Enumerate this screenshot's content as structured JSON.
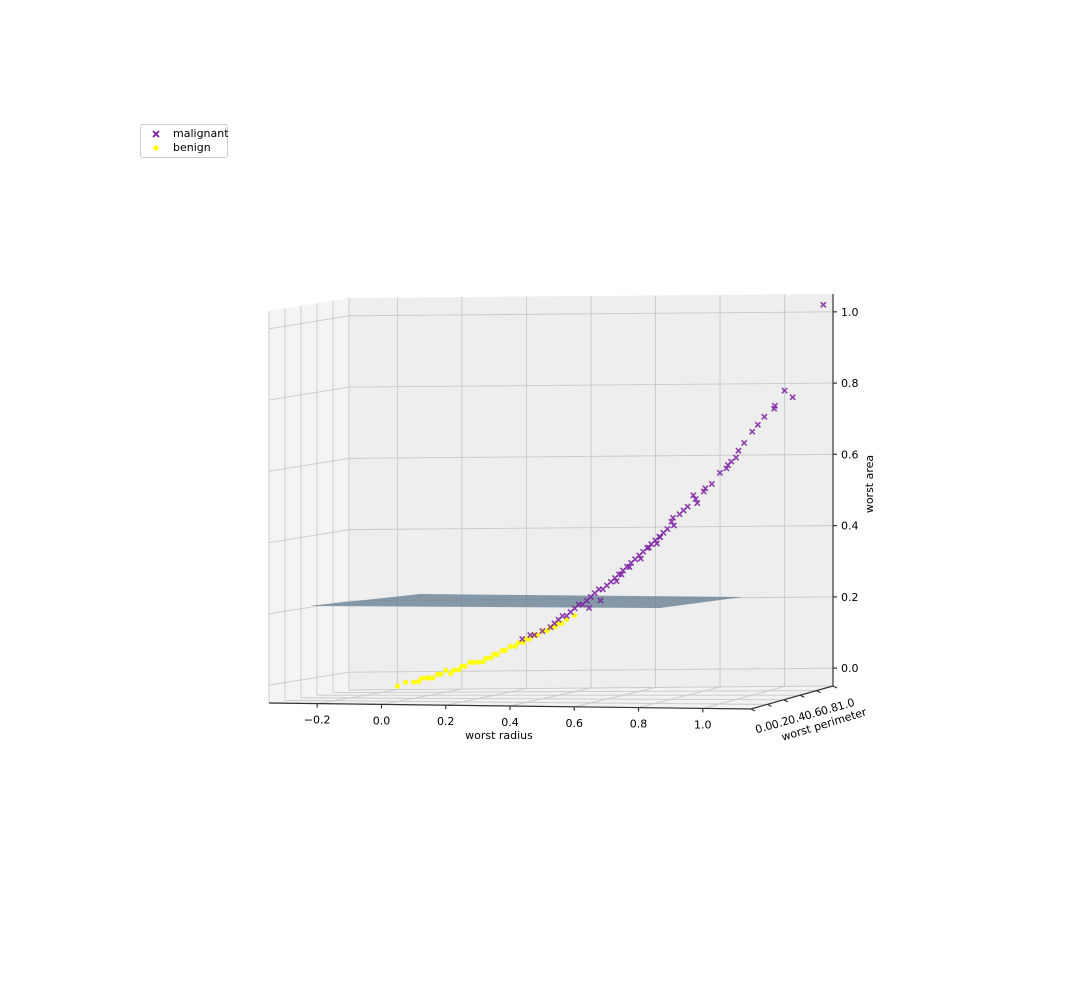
{
  "chart_data": {
    "type": "scatter",
    "projection": "3d",
    "title": "",
    "xlabel": "worst radius",
    "ylabel": "worst perimeter",
    "zlabel": "worst area",
    "xlim": [
      -0.35,
      1.15
    ],
    "ylim": [
      0.0,
      1.0
    ],
    "zlim": [
      -0.05,
      1.05
    ],
    "x_ticks": [
      "−0.2",
      "0.0",
      "0.2",
      "0.4",
      "0.6",
      "0.8",
      "1.0"
    ],
    "y_ticks": [
      "0.0",
      "0.2",
      "0.4",
      "0.6",
      "0.8",
      "1.0"
    ],
    "z_ticks": [
      "0.0",
      "0.2",
      "0.4",
      "0.6",
      "0.8",
      "1.0"
    ],
    "grid": true,
    "legend_position": "upper-left",
    "decision_plane": {
      "type": "surface",
      "z_level": 0.2,
      "color": "#6a8296"
    },
    "series": [
      {
        "name": "malignant",
        "marker": "x",
        "color": "#7b1fa2",
        "points": [
          [
            0.35,
            0.35,
            0.12
          ],
          [
            0.37,
            0.37,
            0.13
          ],
          [
            0.38,
            0.38,
            0.13
          ],
          [
            0.4,
            0.4,
            0.14
          ],
          [
            0.42,
            0.42,
            0.15
          ],
          [
            0.43,
            0.43,
            0.16
          ],
          [
            0.44,
            0.44,
            0.17
          ],
          [
            0.45,
            0.45,
            0.18
          ],
          [
            0.46,
            0.46,
            0.18
          ],
          [
            0.47,
            0.47,
            0.19
          ],
          [
            0.48,
            0.48,
            0.2
          ],
          [
            0.49,
            0.49,
            0.21
          ],
          [
            0.5,
            0.5,
            0.21
          ],
          [
            0.51,
            0.51,
            0.22
          ],
          [
            0.52,
            0.52,
            0.23
          ],
          [
            0.53,
            0.53,
            0.24
          ],
          [
            0.54,
            0.54,
            0.25
          ],
          [
            0.55,
            0.55,
            0.25
          ],
          [
            0.56,
            0.56,
            0.26
          ],
          [
            0.57,
            0.57,
            0.27
          ],
          [
            0.58,
            0.58,
            0.28
          ],
          [
            0.59,
            0.59,
            0.29
          ],
          [
            0.6,
            0.6,
            0.3
          ],
          [
            0.61,
            0.61,
            0.31
          ],
          [
            0.62,
            0.62,
            0.32
          ],
          [
            0.63,
            0.63,
            0.33
          ],
          [
            0.64,
            0.64,
            0.34
          ],
          [
            0.65,
            0.65,
            0.35
          ],
          [
            0.66,
            0.66,
            0.36
          ],
          [
            0.67,
            0.67,
            0.37
          ],
          [
            0.68,
            0.68,
            0.38
          ],
          [
            0.69,
            0.69,
            0.39
          ],
          [
            0.7,
            0.7,
            0.4
          ],
          [
            0.71,
            0.71,
            0.41
          ],
          [
            0.72,
            0.72,
            0.43
          ],
          [
            0.74,
            0.74,
            0.45
          ],
          [
            0.75,
            0.75,
            0.46
          ],
          [
            0.76,
            0.76,
            0.47
          ],
          [
            0.78,
            0.78,
            0.49
          ],
          [
            0.8,
            0.8,
            0.51
          ],
          [
            0.82,
            0.82,
            0.53
          ],
          [
            0.84,
            0.84,
            0.56
          ],
          [
            0.86,
            0.86,
            0.58
          ],
          [
            0.88,
            0.88,
            0.6
          ],
          [
            0.9,
            0.9,
            0.64
          ],
          [
            0.92,
            0.92,
            0.67
          ],
          [
            0.95,
            0.95,
            0.71
          ],
          [
            1.0,
            1.0,
            0.78
          ],
          [
            1.02,
            1.02,
            0.76
          ],
          [
            1.12,
            1.0,
            1.02
          ],
          [
            0.55,
            0.52,
            0.22
          ],
          [
            0.58,
            0.6,
            0.27
          ],
          [
            0.62,
            0.6,
            0.31
          ],
          [
            0.66,
            0.68,
            0.36
          ],
          [
            0.7,
            0.66,
            0.39
          ],
          [
            0.73,
            0.71,
            0.42
          ],
          [
            0.77,
            0.79,
            0.5
          ],
          [
            0.81,
            0.78,
            0.52
          ],
          [
            0.85,
            0.88,
            0.57
          ],
          [
            0.89,
            0.87,
            0.62
          ],
          [
            0.94,
            0.91,
            0.69
          ],
          [
            0.98,
            0.96,
            0.74
          ],
          [
            0.6,
            0.58,
            0.29
          ],
          [
            0.64,
            0.66,
            0.33
          ],
          [
            0.68,
            0.7,
            0.37
          ],
          [
            0.72,
            0.74,
            0.44
          ],
          [
            0.79,
            0.76,
            0.48
          ],
          [
            0.87,
            0.86,
            0.59
          ],
          [
            0.97,
            0.99,
            0.73
          ],
          [
            0.52,
            0.5,
            0.2
          ]
        ]
      },
      {
        "name": "benign",
        "marker": "o",
        "color": "#ffff00",
        "points": [
          [
            0.04,
            0.04,
            0.0
          ],
          [
            0.06,
            0.06,
            0.01
          ],
          [
            0.08,
            0.08,
            0.01
          ],
          [
            0.1,
            0.1,
            0.02
          ],
          [
            0.12,
            0.12,
            0.02
          ],
          [
            0.14,
            0.14,
            0.03
          ],
          [
            0.16,
            0.16,
            0.04
          ],
          [
            0.18,
            0.18,
            0.04
          ],
          [
            0.2,
            0.2,
            0.05
          ],
          [
            0.22,
            0.22,
            0.06
          ],
          [
            0.24,
            0.24,
            0.06
          ],
          [
            0.26,
            0.26,
            0.07
          ],
          [
            0.28,
            0.28,
            0.08
          ],
          [
            0.3,
            0.3,
            0.09
          ],
          [
            0.32,
            0.32,
            0.1
          ],
          [
            0.34,
            0.34,
            0.11
          ],
          [
            0.36,
            0.36,
            0.12
          ],
          [
            0.38,
            0.38,
            0.13
          ],
          [
            0.4,
            0.4,
            0.14
          ],
          [
            0.42,
            0.42,
            0.15
          ],
          [
            0.44,
            0.44,
            0.16
          ],
          [
            0.46,
            0.46,
            0.17
          ],
          [
            0.48,
            0.48,
            0.18
          ],
          [
            0.09,
            0.1,
            0.01
          ],
          [
            0.13,
            0.12,
            0.02
          ],
          [
            0.17,
            0.18,
            0.03
          ],
          [
            0.21,
            0.2,
            0.05
          ],
          [
            0.25,
            0.26,
            0.06
          ],
          [
            0.29,
            0.28,
            0.08
          ],
          [
            0.33,
            0.34,
            0.1
          ],
          [
            0.37,
            0.36,
            0.12
          ],
          [
            0.41,
            0.42,
            0.14
          ],
          [
            0.45,
            0.44,
            0.16
          ],
          [
            0.11,
            0.12,
            0.02
          ],
          [
            0.15,
            0.14,
            0.03
          ],
          [
            0.19,
            0.2,
            0.04
          ],
          [
            0.23,
            0.22,
            0.06
          ],
          [
            0.27,
            0.28,
            0.07
          ],
          [
            0.31,
            0.3,
            0.09
          ],
          [
            0.35,
            0.36,
            0.11
          ],
          [
            0.39,
            0.38,
            0.13
          ],
          [
            0.43,
            0.44,
            0.15
          ]
        ]
      }
    ]
  }
}
